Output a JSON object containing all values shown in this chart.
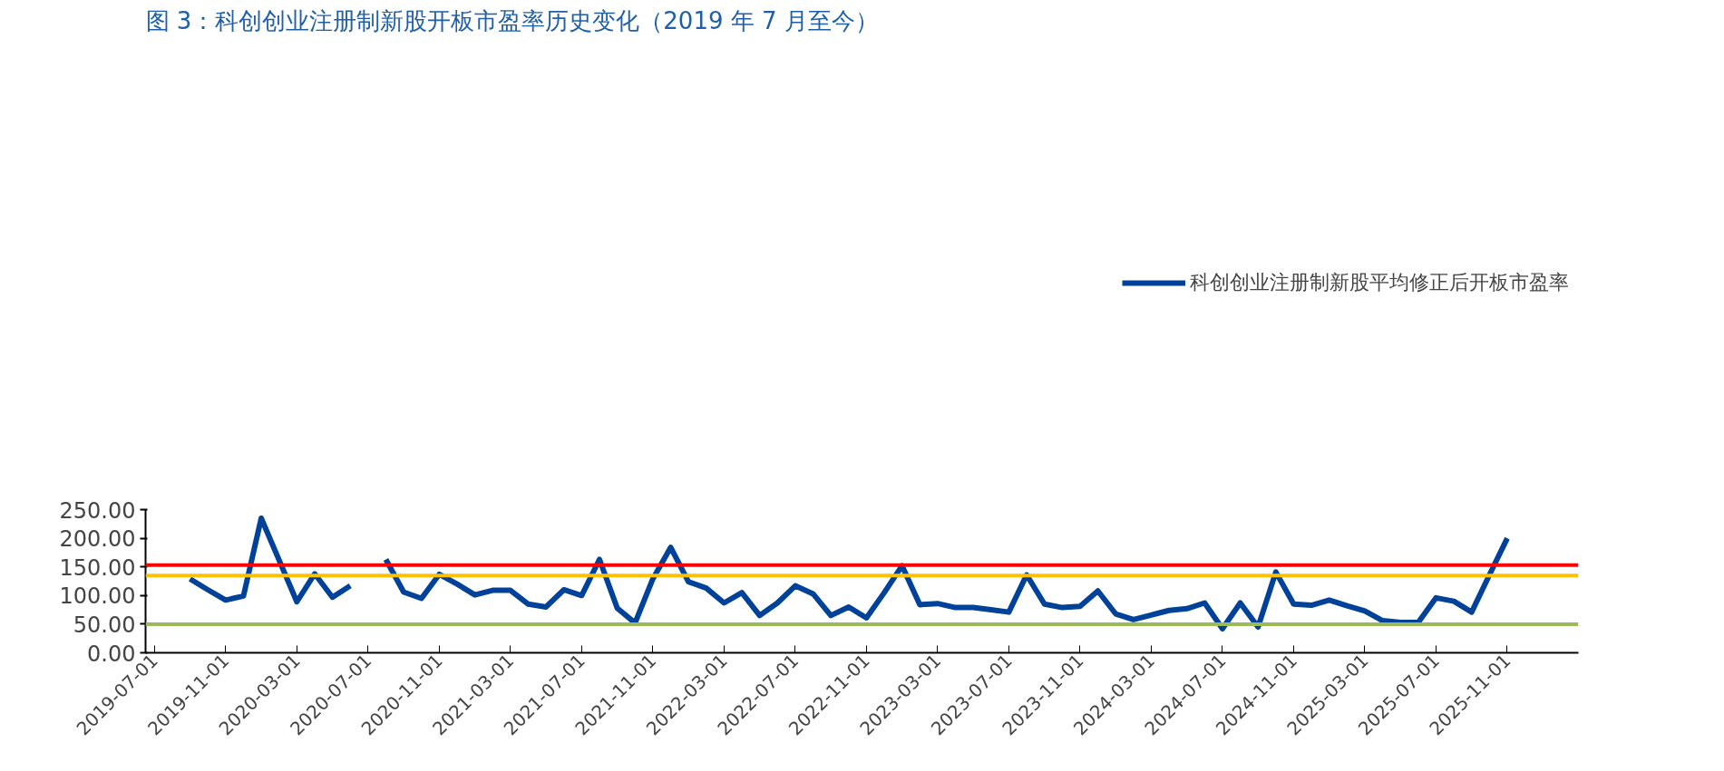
{
  "chart_data": {
    "type": "line",
    "title": "图 3：科创创业注册制新股开板市盈率历史变化（2019 年 7 月至今）",
    "categories": [
      "2019-07-01",
      null,
      null,
      null,
      "2019-11-01",
      null,
      null,
      null,
      "2020-03-01",
      null,
      null,
      null,
      "2020-07-01",
      null,
      null,
      null,
      "2020-11-01",
      null,
      null,
      null,
      "2021-03-01",
      null,
      null,
      null,
      "2021-07-01",
      null,
      null,
      null,
      "2021-11-01",
      null,
      null,
      null,
      "2022-03-01",
      null,
      null,
      null,
      "2022-07-01",
      null,
      null,
      null,
      "2022-11-01",
      null,
      null,
      null,
      "2023-03-01",
      null,
      null,
      null,
      "2023-07-01",
      null,
      null,
      null,
      "2023-11-01",
      null,
      null,
      null,
      "2024-03-01",
      null,
      null,
      null,
      "2024-07-01",
      null,
      null,
      null,
      "2024-11-01",
      null,
      null,
      null,
      "2025-03-01",
      null,
      null,
      null,
      "2025-07-01",
      null,
      null,
      null,
      "2025-11-01"
    ],
    "series": [
      {
        "name": "科创创业注册制新股平均修正后开板市盈率",
        "color": "#004299",
        "values": [
          null,
          null,
          129,
          110,
          92,
          99,
          235,
          162,
          89,
          138,
          97,
          117,
          null,
          163,
          106,
          95,
          137,
          120,
          101,
          109,
          109,
          85,
          80,
          110,
          100,
          163,
          78,
          52,
          129,
          184,
          124,
          113,
          87,
          105,
          65,
          87,
          117,
          103,
          65,
          80,
          61,
          105,
          152,
          84,
          86,
          79,
          79,
          75,
          71,
          136,
          85,
          79,
          81,
          108,
          68,
          58,
          66,
          74,
          77,
          87,
          42,
          87,
          45,
          141,
          85,
          83,
          92,
          82,
          73,
          56,
          53,
          53,
          96,
          90,
          71,
          136,
          200
        ]
      }
    ],
    "ylim": [
      0,
      250
    ],
    "yticks": [
      {
        "value": 0,
        "label": "0.00"
      },
      {
        "value": 50,
        "label": "50.00"
      },
      {
        "value": 100,
        "label": "100.00"
      },
      {
        "value": 150,
        "label": "150.00"
      },
      {
        "value": 200,
        "label": "200.00"
      },
      {
        "value": 250,
        "label": "250.00"
      }
    ],
    "legend": "top",
    "ref_lines": [
      {
        "axis": "y",
        "value": 153,
        "color": "#ff0000"
      },
      {
        "axis": "y",
        "value": 135,
        "color": "#ffc000"
      },
      {
        "axis": "y",
        "value": 50,
        "color": "#9bbb59"
      }
    ]
  }
}
